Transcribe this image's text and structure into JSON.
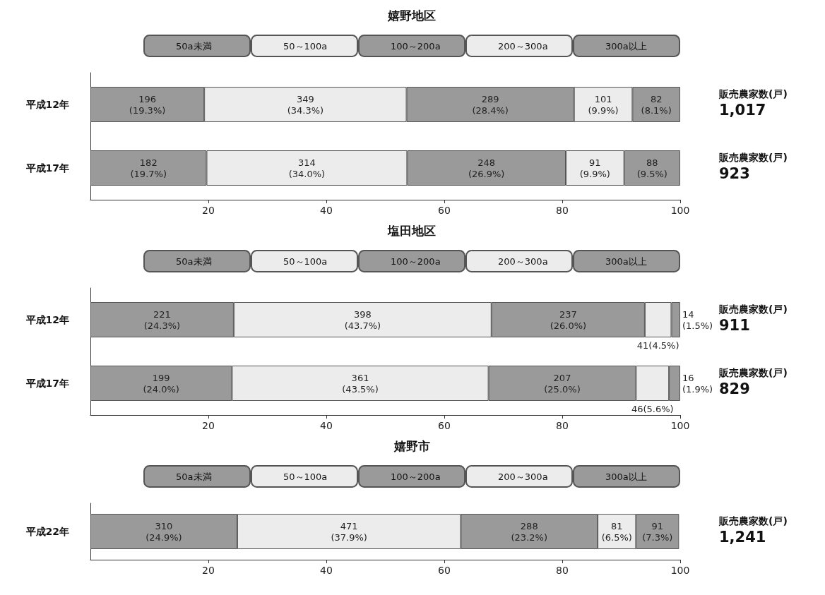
{
  "chart_data": [
    {
      "type": "bar",
      "orientation": "horizontal",
      "stacked": true,
      "title": "嬉野地区",
      "categories": [
        "平成12年",
        "平成17年"
      ],
      "xlim": [
        0,
        100
      ],
      "xticks": [
        20,
        40,
        60,
        80,
        100
      ],
      "grid": false,
      "legend": "top",
      "series": [
        {
          "name": "50a未満",
          "color": "#9a9a9a",
          "values": [
            19.3,
            19.7
          ],
          "value_labels": [
            "196\n(19.3%)",
            "182\n(19.7%)"
          ]
        },
        {
          "name": "50～100a",
          "color": "#ececec",
          "values": [
            34.3,
            34.0
          ],
          "value_labels": [
            "349\n(34.3%)",
            "314\n(34.0%)"
          ]
        },
        {
          "name": "100～200a",
          "color": "#9a9a9a",
          "values": [
            28.4,
            26.9
          ],
          "value_labels": [
            "289\n(28.4%)",
            "248\n(26.9%)"
          ]
        },
        {
          "name": "200～300a",
          "color": "#ececec",
          "values": [
            9.9,
            9.9
          ],
          "value_labels": [
            "101\n(9.9%)",
            "91\n(9.9%)"
          ]
        },
        {
          "name": "300a以上",
          "color": "#9a9a9a",
          "values": [
            8.1,
            9.5
          ],
          "value_labels": [
            "82\n(8.1%)",
            "88\n(9.5%)"
          ]
        }
      ],
      "annotations": [
        "販売農家数(戸)",
        "1,017",
        "販売農家数(戸)",
        "923"
      ]
    },
    {
      "type": "bar",
      "orientation": "horizontal",
      "stacked": true,
      "title": "塩田地区",
      "categories": [
        "平成12年",
        "平成17年"
      ],
      "xlim": [
        0,
        100
      ],
      "xticks": [
        20,
        40,
        60,
        80,
        100
      ],
      "grid": false,
      "legend": "top",
      "series": [
        {
          "name": "50a未満",
          "color": "#9a9a9a",
          "values": [
            24.3,
            24.0
          ],
          "value_labels": [
            "221\n(24.3%)",
            "199\n(24.0%)"
          ]
        },
        {
          "name": "50～100a",
          "color": "#ececec",
          "values": [
            43.7,
            43.5
          ],
          "value_labels": [
            "398\n(43.7%)",
            "361\n(43.5%)"
          ]
        },
        {
          "name": "100～200a",
          "color": "#9a9a9a",
          "values": [
            26.0,
            25.0
          ],
          "value_labels": [
            "237\n(26.0%)",
            "207\n(25.0%)"
          ]
        },
        {
          "name": "200～300a",
          "color": "#ececec",
          "values": [
            4.5,
            5.6
          ],
          "value_labels": [
            "41(4.5%)",
            "46(5.6%)"
          ]
        },
        {
          "name": "300a以上",
          "color": "#9a9a9a",
          "values": [
            1.5,
            1.9
          ],
          "value_labels": [
            "14\n(1.5%)",
            "16\n(1.9%)"
          ]
        }
      ],
      "annotations": [
        "販売農家数(戸)",
        "911",
        "販売農家数(戸)",
        "829"
      ]
    },
    {
      "type": "bar",
      "orientation": "horizontal",
      "stacked": true,
      "title": "嬉野市",
      "categories": [
        "平成22年"
      ],
      "xlim": [
        0,
        100
      ],
      "xticks": [
        20,
        40,
        60,
        80,
        100
      ],
      "grid": false,
      "legend": "top",
      "series": [
        {
          "name": "50a未満",
          "color": "#9a9a9a",
          "values": [
            24.9
          ],
          "value_labels": [
            "310\n(24.9%)"
          ]
        },
        {
          "name": "50～100a",
          "color": "#ececec",
          "values": [
            37.9
          ],
          "value_labels": [
            "471\n(37.9%)"
          ]
        },
        {
          "name": "100～200a",
          "color": "#9a9a9a",
          "values": [
            23.2
          ],
          "value_labels": [
            "288\n(23.2%)"
          ]
        },
        {
          "name": "200～300a",
          "color": "#ececec",
          "values": [
            6.5
          ],
          "value_labels": [
            "81\n(6.5%)"
          ]
        },
        {
          "name": "300a以上",
          "color": "#9a9a9a",
          "values": [
            7.3
          ],
          "value_labels": [
            "91\n(7.3%)"
          ]
        }
      ],
      "annotations": [
        "販売農家数(戸)",
        "1,241"
      ]
    }
  ]
}
